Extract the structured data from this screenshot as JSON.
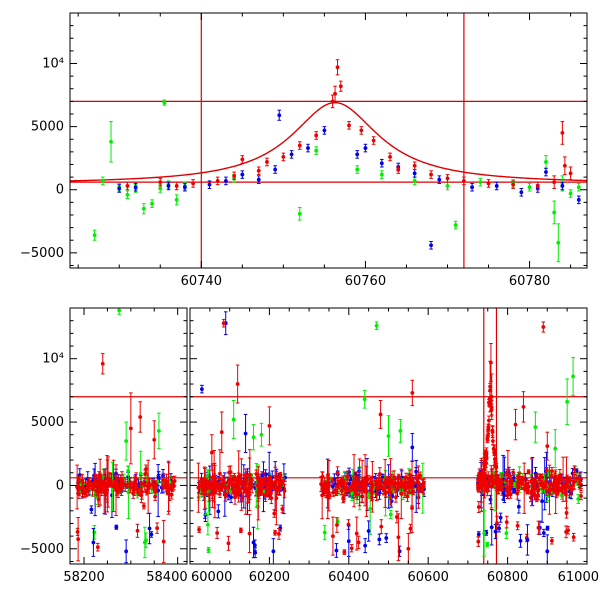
{
  "chart_data": [
    {
      "type": "scatter",
      "title": "",
      "xlabel": "",
      "ylabel": "",
      "xlim": [
        60724,
        60787
      ],
      "ylim": [
        -6200,
        14000
      ],
      "xticks": [
        60740,
        60760,
        60780
      ],
      "xtick_labels": [
        "60740",
        "60760",
        "60780"
      ],
      "yticks": [
        -5000,
        0,
        5000,
        10000
      ],
      "ytick_labels": [
        "−5000",
        "0",
        "5000",
        "10⁴"
      ],
      "hlines": [
        7000,
        600
      ],
      "vlines": [
        60740,
        60772
      ],
      "model": {
        "baseline": 450,
        "peak": 6900,
        "t0": 60756.3,
        "tE": 6.5
      },
      "series": [
        {
          "name": "green",
          "color": "#00ee00",
          "points": [
            [
              60727,
              -3600,
              400
            ],
            [
              60728,
              700,
              300
            ],
            [
              60729,
              3800,
              1600
            ],
            [
              60730,
              200,
              300
            ],
            [
              60731,
              -400,
              300
            ],
            [
              60732,
              100,
              300
            ],
            [
              60733,
              -1500,
              400
            ],
            [
              60734,
              -1100,
              300
            ],
            [
              60735,
              100,
              300
            ],
            [
              60735.5,
              6900,
              200
            ],
            [
              60736,
              400,
              300
            ],
            [
              60737,
              -800,
              400
            ],
            [
              60738,
              300,
              300
            ],
            [
              60744,
              900,
              300
            ],
            [
              60752,
              -1900,
              500
            ],
            [
              60754,
              3100,
              300
            ],
            [
              60759,
              1600,
              300
            ],
            [
              60762,
              1200,
              300
            ],
            [
              60766,
              700,
              300
            ],
            [
              60770,
              300,
              300
            ],
            [
              60771,
              -2800,
              300
            ],
            [
              60774,
              600,
              300
            ],
            [
              60778,
              500,
              300
            ],
            [
              60780,
              200,
              300
            ],
            [
              60782,
              2200,
              500
            ],
            [
              60783,
              -1800,
              900
            ],
            [
              60783.5,
              -4200,
              1500
            ],
            [
              60784,
              500,
              600
            ],
            [
              60785,
              -300,
              300
            ],
            [
              60786,
              200,
              300
            ]
          ]
        },
        {
          "name": "blue",
          "color": "#0000ee",
          "points": [
            [
              60730,
              100,
              300
            ],
            [
              60732,
              200,
              300
            ],
            [
              60736,
              300,
              300
            ],
            [
              60738,
              200,
              300
            ],
            [
              60741,
              400,
              300
            ],
            [
              60743,
              700,
              300
            ],
            [
              60745,
              1200,
              300
            ],
            [
              60747,
              800,
              300
            ],
            [
              60749,
              1600,
              300
            ],
            [
              60749.5,
              5900,
              400
            ],
            [
              60751,
              2800,
              300
            ],
            [
              60753,
              3300,
              300
            ],
            [
              60755,
              4700,
              300
            ],
            [
              60759,
              2800,
              300
            ],
            [
              60760,
              3300,
              300
            ],
            [
              60762,
              2100,
              300
            ],
            [
              60764,
              1800,
              300
            ],
            [
              60766,
              1300,
              300
            ],
            [
              60768,
              -4400,
              300
            ],
            [
              60769,
              800,
              300
            ],
            [
              60773,
              200,
              300
            ],
            [
              60776,
              300,
              300
            ],
            [
              60779,
              -200,
              300
            ],
            [
              60781,
              100,
              300
            ],
            [
              60782,
              1400,
              300
            ],
            [
              60784,
              300,
              300
            ],
            [
              60786,
              -800,
              300
            ]
          ]
        },
        {
          "name": "red",
          "color": "#ee0000",
          "points": [
            [
              60731,
              300,
              300
            ],
            [
              60735,
              600,
              300
            ],
            [
              60737,
              300,
              300
            ],
            [
              60739,
              500,
              300
            ],
            [
              60742,
              700,
              300
            ],
            [
              60744,
              1100,
              300
            ],
            [
              60745,
              2400,
              300
            ],
            [
              60747,
              1500,
              300
            ],
            [
              60748,
              2200,
              300
            ],
            [
              60750,
              2600,
              300
            ],
            [
              60752,
              3500,
              300
            ],
            [
              60754,
              4300,
              300
            ],
            [
              60756,
              7000,
              500
            ],
            [
              60756.3,
              7600,
              600
            ],
            [
              60756.6,
              9700,
              600
            ],
            [
              60757,
              8200,
              400
            ],
            [
              60758,
              5100,
              300
            ],
            [
              60759.5,
              4700,
              300
            ],
            [
              60761,
              3900,
              300
            ],
            [
              60763,
              2600,
              300
            ],
            [
              60764,
              1600,
              300
            ],
            [
              60766,
              1900,
              300
            ],
            [
              60768,
              1200,
              300
            ],
            [
              60770,
              900,
              300
            ],
            [
              60772,
              700,
              300
            ],
            [
              60775,
              500,
              300
            ],
            [
              60778,
              400,
              300
            ],
            [
              60781,
              300,
              300
            ],
            [
              60783,
              600,
              500
            ],
            [
              60784,
              4500,
              900
            ],
            [
              60784.3,
              1900,
              700
            ],
            [
              60785,
              1300,
              500
            ]
          ]
        }
      ]
    },
    {
      "type": "scatter",
      "title": "",
      "xlabel": "",
      "ylabel": "",
      "ylim": [
        -6200,
        14000
      ],
      "segments": [
        {
          "xlim": [
            58170,
            58420
          ],
          "xticks": [
            58200,
            58400
          ],
          "xtick_labels": [
            "58200",
            "58400"
          ]
        },
        {
          "xlim": [
            60000,
            61000
          ],
          "xticks": [
            60000,
            60200,
            60400,
            60600,
            60800,
            61000
          ],
          "xtick_labels": [
            "60000",
            "60200",
            "60400",
            "60600",
            "60800",
            "61000"
          ]
        }
      ],
      "yticks": [
        -5000,
        0,
        5000,
        10000
      ],
      "ytick_labels": [
        "−5000",
        "0",
        "5000",
        "10⁴"
      ],
      "hlines": [
        7000,
        600
      ],
      "vlines": [
        60740,
        60772
      ],
      "dense_seasons": [
        {
          "x": [
            58185,
            58395
          ],
          "level": 0,
          "spread": 600,
          "n_red": 130,
          "n_blue": 70,
          "n_green": 35
        },
        {
          "x": [
            60020,
            60240
          ],
          "level": 0,
          "spread": 650,
          "n_red": 140,
          "n_blue": 80,
          "n_green": 40
        },
        {
          "x": [
            60330,
            60590
          ],
          "level": 0,
          "spread": 650,
          "n_red": 150,
          "n_blue": 85,
          "n_green": 45
        },
        {
          "x": [
            60725,
            60790
          ],
          "level": 300,
          "spread": 500,
          "n_red": 60,
          "n_blue": 35,
          "n_green": 20
        },
        {
          "x": [
            60790,
            60985
          ],
          "level": 0,
          "spread": 700,
          "n_red": 110,
          "n_blue": 65,
          "n_green": 35
        }
      ],
      "series": [
        {
          "name": "green",
          "color": "#00ee00",
          "points": [
            [
              58275,
              13800,
              300
            ],
            [
              58290,
              3500,
              1500
            ],
            [
              58330,
              -4500,
              1200
            ],
            [
              58360,
              4300,
              1400
            ],
            [
              60045,
              -3100,
              800
            ],
            [
              60110,
              5200,
              1500
            ],
            [
              60160,
              3800,
              1000
            ],
            [
              60180,
              4000,
              900
            ],
            [
              60440,
              6800,
              700
            ],
            [
              60470,
              12600,
              300
            ],
            [
              60500,
              3900,
              1600
            ],
            [
              60530,
              4300,
              900
            ],
            [
              60870,
              4600,
              1200
            ],
            [
              60920,
              2900,
              1500
            ],
            [
              60950,
              6600,
              1800
            ],
            [
              60965,
              8600,
              1500
            ]
          ]
        },
        {
          "name": "blue",
          "color": "#0000ee",
          "points": [
            [
              58220,
              -4500,
              1100
            ],
            [
              58290,
              -5200,
              900
            ],
            [
              58340,
              -3400,
              1200
            ],
            [
              60030,
              7600,
              300
            ],
            [
              60090,
              12800,
              900
            ],
            [
              60140,
              4100,
              1500
            ],
            [
              60160,
              -4500,
              1200
            ],
            [
              60210,
              -5200,
              1000
            ],
            [
              60400,
              -4400,
              1200
            ],
            [
              60450,
              -3600,
              800
            ],
            [
              60560,
              3000,
              1100
            ],
            [
              60760,
              -3300,
              1400
            ],
            [
              60850,
              -4300,
              1200
            ],
            [
              60900,
              -5200,
              1300
            ]
          ]
        },
        {
          "name": "red",
          "color": "#ee0000",
          "points": [
            [
              58240,
              9600,
              800
            ],
            [
              58300,
              4500,
              2800
            ],
            [
              58320,
              5400,
              1200
            ],
            [
              58350,
              3600,
              1500
            ],
            [
              60055,
              2600,
              1400
            ],
            [
              60080,
              4200,
              1600
            ],
            [
              60085,
              12800,
              300
            ],
            [
              60120,
              8000,
              1500
            ],
            [
              60150,
              -3800,
              1500
            ],
            [
              60200,
              4700,
              1500
            ],
            [
              60360,
              -4000,
              1500
            ],
            [
              60420,
              -3800,
              1300
            ],
            [
              60480,
              5600,
              1100
            ],
            [
              60550,
              -5000,
              1200
            ],
            [
              60560,
              7300,
              1000
            ],
            [
              60756,
              7800,
              2000
            ],
            [
              60758,
              9700,
              1500
            ],
            [
              60760,
              7000,
              1800
            ],
            [
              60820,
              4800,
              1200
            ],
            [
              60840,
              6200,
              1200
            ],
            [
              60890,
              12500,
              400
            ],
            [
              60900,
              3100,
              1100
            ]
          ]
        }
      ]
    }
  ]
}
